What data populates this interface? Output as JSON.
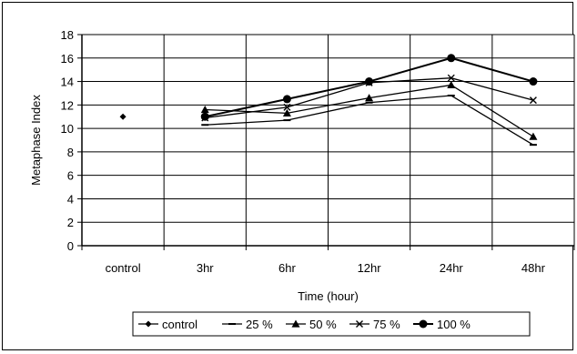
{
  "chart_data": {
    "type": "line",
    "title": "",
    "xlabel": "Time (hour)",
    "ylabel": "Metaphase Index",
    "categories": [
      "control",
      "3hr",
      "6hr",
      "12hr",
      "24hr",
      "48hr"
    ],
    "ylim": [
      0,
      18
    ],
    "yticks": [
      0,
      2,
      4,
      6,
      8,
      10,
      12,
      14,
      16,
      18
    ],
    "grid": true,
    "legend_position": "bottom",
    "series": [
      {
        "name": "control",
        "marker": "diamond",
        "values": [
          11.0,
          null,
          null,
          null,
          null,
          null
        ]
      },
      {
        "name": "25 %",
        "marker": "dash",
        "values": [
          null,
          10.3,
          10.7,
          12.2,
          12.8,
          8.6
        ]
      },
      {
        "name": "50 %",
        "marker": "triangle",
        "values": [
          null,
          11.6,
          11.3,
          12.6,
          13.7,
          9.3
        ]
      },
      {
        "name": "75 %",
        "marker": "cross",
        "values": [
          null,
          10.9,
          11.8,
          13.9,
          14.3,
          12.4
        ]
      },
      {
        "name": "100 %",
        "marker": "circle",
        "values": [
          null,
          11.0,
          12.5,
          14.0,
          16.0,
          14.0
        ]
      }
    ]
  }
}
